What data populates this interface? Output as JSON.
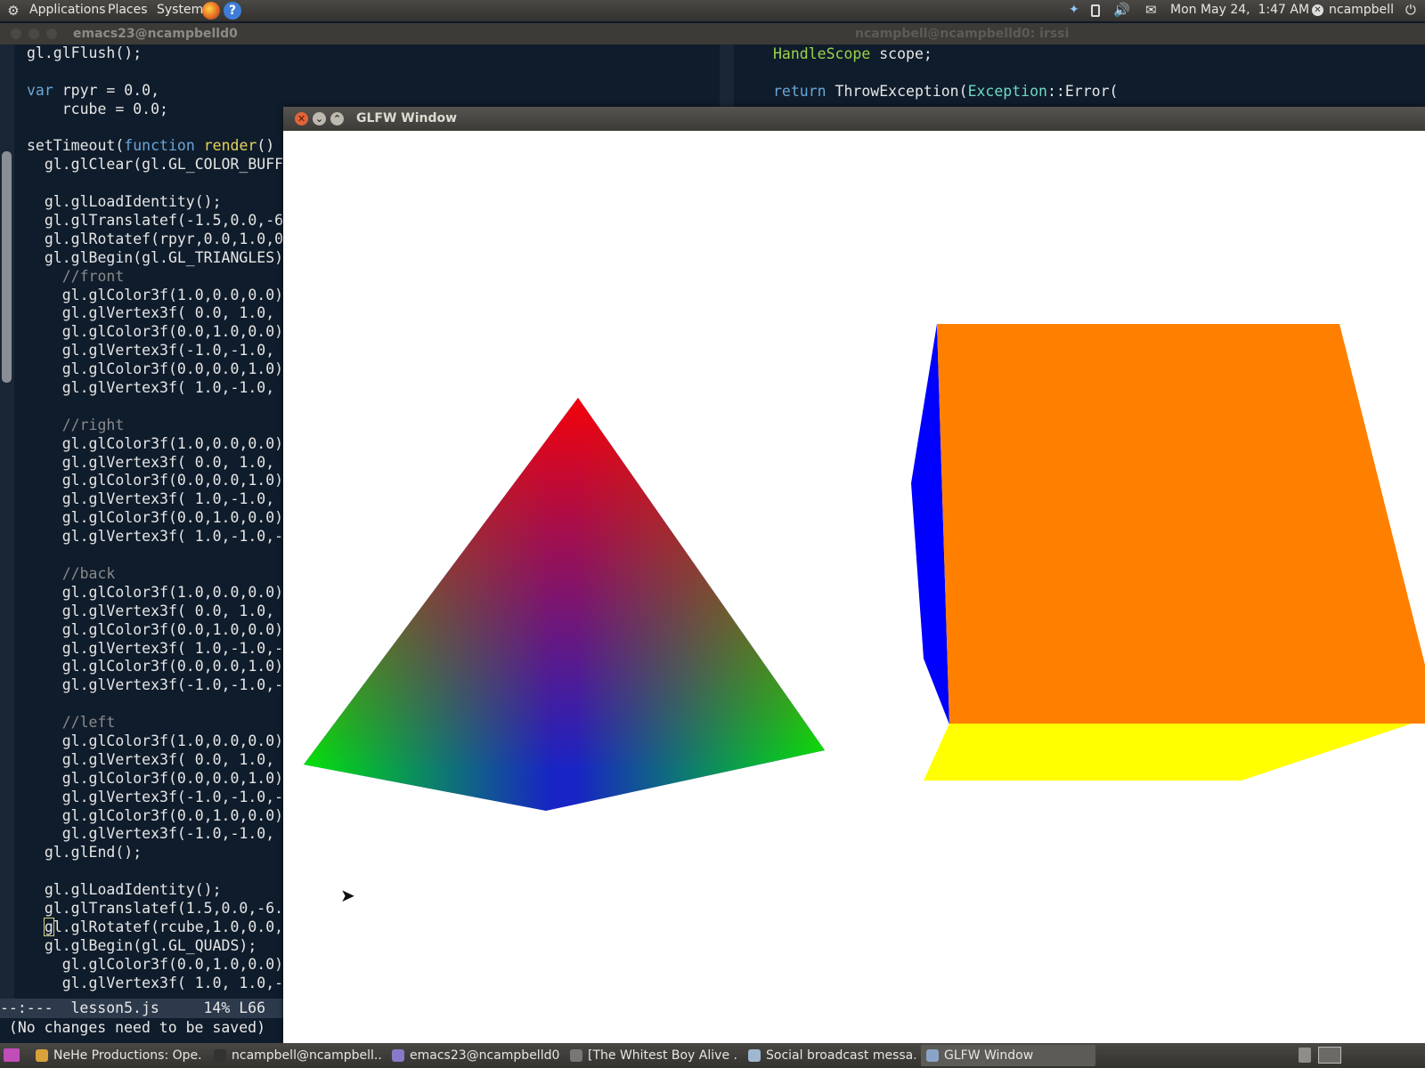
{
  "top_panel": {
    "menus": [
      "Applications",
      "Places",
      "System"
    ],
    "clock": "Mon May 24,  1:47 AM",
    "user": "ncampbell"
  },
  "emacs": {
    "title": "emacs23@ncampbelld0",
    "code": [
      [
        [
          "",
          "gl.glFlush();"
        ]
      ],
      [],
      [
        [
          "kw",
          "var"
        ],
        [
          "",
          " rpyr = 0.0,"
        ]
      ],
      [
        [
          "",
          "    rcube = 0.0;"
        ]
      ],
      [],
      [
        [
          "",
          "setTimeout("
        ],
        [
          "kw",
          "function"
        ],
        [
          "",
          " "
        ],
        [
          "fn",
          "render"
        ],
        [
          "",
          "() {"
        ]
      ],
      [
        [
          "",
          "  gl.glClear(gl.GL_COLOR_BUFF"
        ]
      ],
      [],
      [
        [
          "",
          "  gl.glLoadIdentity();"
        ]
      ],
      [
        [
          "",
          "  gl.glTranslatef(-1.5,0.0,-6"
        ]
      ],
      [
        [
          "",
          "  gl.glRotatef(rpyr,0.0,1.0,0"
        ]
      ],
      [
        [
          "",
          "  gl.glBegin(gl.GL_TRIANGLES)"
        ]
      ],
      [
        [
          "cm",
          "    //front"
        ]
      ],
      [
        [
          "",
          "    gl.glColor3f(1.0,0.0,0.0)"
        ]
      ],
      [
        [
          "",
          "    gl.glVertex3f( 0.0, 1.0,"
        ]
      ],
      [
        [
          "",
          "    gl.glColor3f(0.0,1.0,0.0)"
        ]
      ],
      [
        [
          "",
          "    gl.glVertex3f(-1.0,-1.0,"
        ]
      ],
      [
        [
          "",
          "    gl.glColor3f(0.0,0.0,1.0)"
        ]
      ],
      [
        [
          "",
          "    gl.glVertex3f( 1.0,-1.0,"
        ]
      ],
      [],
      [
        [
          "cm",
          "    //right"
        ]
      ],
      [
        [
          "",
          "    gl.glColor3f(1.0,0.0,0.0)"
        ]
      ],
      [
        [
          "",
          "    gl.glVertex3f( 0.0, 1.0,"
        ]
      ],
      [
        [
          "",
          "    gl.glColor3f(0.0,0.0,1.0)"
        ]
      ],
      [
        [
          "",
          "    gl.glVertex3f( 1.0,-1.0,"
        ]
      ],
      [
        [
          "",
          "    gl.glColor3f(0.0,1.0,0.0)"
        ]
      ],
      [
        [
          "",
          "    gl.glVertex3f( 1.0,-1.0,-"
        ]
      ],
      [],
      [
        [
          "cm",
          "    //back"
        ]
      ],
      [
        [
          "",
          "    gl.glColor3f(1.0,0.0,0.0)"
        ]
      ],
      [
        [
          "",
          "    gl.glVertex3f( 0.0, 1.0,"
        ]
      ],
      [
        [
          "",
          "    gl.glColor3f(0.0,1.0,0.0)"
        ]
      ],
      [
        [
          "",
          "    gl.glVertex3f( 1.0,-1.0,-"
        ]
      ],
      [
        [
          "",
          "    gl.glColor3f(0.0,0.0,1.0)"
        ]
      ],
      [
        [
          "",
          "    gl.glVertex3f(-1.0,-1.0,-"
        ]
      ],
      [],
      [
        [
          "cm",
          "    //left"
        ]
      ],
      [
        [
          "",
          "    gl.glColor3f(1.0,0.0,0.0)"
        ]
      ],
      [
        [
          "",
          "    gl.glVertex3f( 0.0, 1.0,"
        ]
      ],
      [
        [
          "",
          "    gl.glColor3f(0.0,0.0,1.0)"
        ]
      ],
      [
        [
          "",
          "    gl.glVertex3f(-1.0,-1.0,-"
        ]
      ],
      [
        [
          "",
          "    gl.glColor3f(0.0,1.0,0.0)"
        ]
      ],
      [
        [
          "",
          "    gl.glVertex3f(-1.0,-1.0,"
        ]
      ],
      [
        [
          "",
          "  gl.glEnd();"
        ]
      ],
      [],
      [
        [
          "",
          "  gl.glLoadIdentity();"
        ]
      ],
      [
        [
          "",
          "  gl.glTranslatef(1.5,0.0,-6."
        ]
      ],
      [
        [
          "",
          "  "
        ],
        [
          "cur",
          "g"
        ],
        [
          "",
          "l.glRotatef(rcube,1.0,0.0,"
        ]
      ],
      [
        [
          "",
          "  gl.glBegin(gl.GL_QUADS);"
        ]
      ],
      [
        [
          "",
          "    gl.glColor3f(0.0,1.0,0.0)"
        ]
      ],
      [
        [
          "",
          "    gl.glVertex3f( 1.0, 1.0,-"
        ]
      ]
    ],
    "modeline": "--:---  lesson5.js     14% L66",
    "minibuffer": " (No changes need to be saved)"
  },
  "terminal": {
    "title": "ncampbell@ncampbelld0: irssi",
    "code": [
      [
        [
          "ty",
          "HandleScope"
        ],
        [
          "",
          " scope;"
        ]
      ],
      [],
      [
        [
          "kw",
          "return"
        ],
        [
          "",
          " ThrowException("
        ],
        [
          "cl",
          "Exception"
        ],
        [
          "",
          "::Error("
        ]
      ]
    ]
  },
  "glfw": {
    "title": "GLFW Window",
    "colors": {
      "red": "#ff0000",
      "green": "#00ee00",
      "blue": "#0000ff",
      "orange": "#ff8000",
      "yellow": "#ffff00",
      "cube_side": "#0000ff"
    }
  },
  "taskbar": {
    "tasks": [
      {
        "label": "NeHe Productions: Ope...",
        "icon": "chrome-icon",
        "color": "#d8a23a"
      },
      {
        "label": "ncampbell@ncampbell...",
        "icon": "terminal-icon",
        "color": "#333333"
      },
      {
        "label": "emacs23@ncampbelld0",
        "icon": "emacs-icon",
        "color": "#8a79c9"
      },
      {
        "label": "[The Whitest Boy Alive ...",
        "icon": "music-icon",
        "color": "#777777"
      },
      {
        "label": "Social broadcast messa...",
        "icon": "chat-icon",
        "color": "#9fb8d0"
      },
      {
        "label": "GLFW Window",
        "icon": "window-icon",
        "color": "#8aa4c8"
      }
    ]
  }
}
